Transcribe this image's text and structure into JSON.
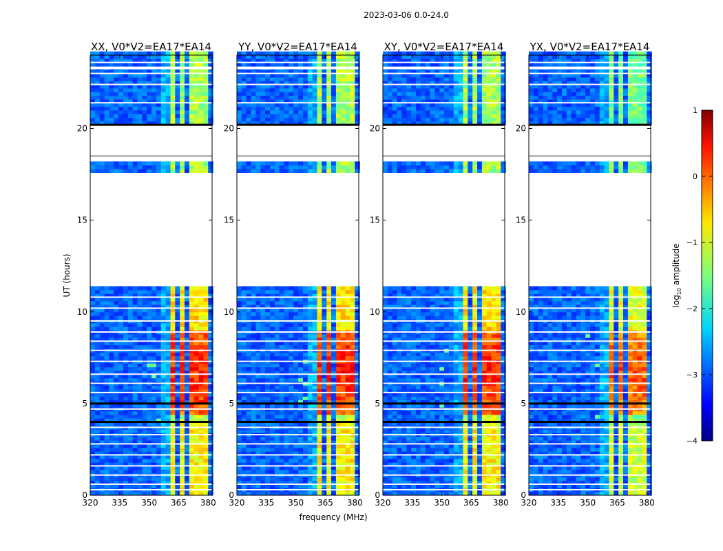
{
  "figure": {
    "suptitle": "2023-03-06 0.0-24.0",
    "xlabel": "frequency (MHz)",
    "ylabel": "UT (hours)"
  },
  "chart_data": {
    "type": "heatmap",
    "title": "2023-03-06 0.0-24.0",
    "xlabel": "frequency (MHz)",
    "ylabel": "UT (hours)",
    "xlim": [
      320,
      382
    ],
    "ylim": [
      0,
      24
    ],
    "x_ticks": [
      320,
      335,
      350,
      365,
      380
    ],
    "y_ticks": [
      0,
      5,
      10,
      15,
      20
    ],
    "panels": [
      {
        "name": "XX, V0*V2=EA17*EA14"
      },
      {
        "name": "YY, V0*V2=EA17*EA14"
      },
      {
        "name": "XY, V0*V2=EA17*EA14"
      },
      {
        "name": "YX, V0*V2=EA17*EA14"
      }
    ],
    "colorbar": {
      "label": "log",
      "label_sub": "10",
      "label_rest": " amplitude",
      "range": [
        -4,
        1
      ],
      "ticks": [
        "1",
        "0",
        "−1",
        "−2",
        "−3",
        "−4"
      ],
      "colormap": "jet"
    },
    "data_gaps_hours": [
      [
        11.35,
        17.65
      ],
      [
        18.15,
        20.2
      ]
    ],
    "rfi_band_mhz": [
      360.5,
      380.0
    ],
    "rfi_subbands_mhz": [
      [
        360.5,
        364.0
      ],
      [
        365.3,
        369.0
      ],
      [
        370.3,
        374.0
      ],
      [
        375.3,
        379.5
      ]
    ],
    "peak_amplitude_hours": [
      5.0,
      9.0
    ],
    "flag_lines_hours": [
      4.0,
      5.0,
      20.2
    ]
  }
}
